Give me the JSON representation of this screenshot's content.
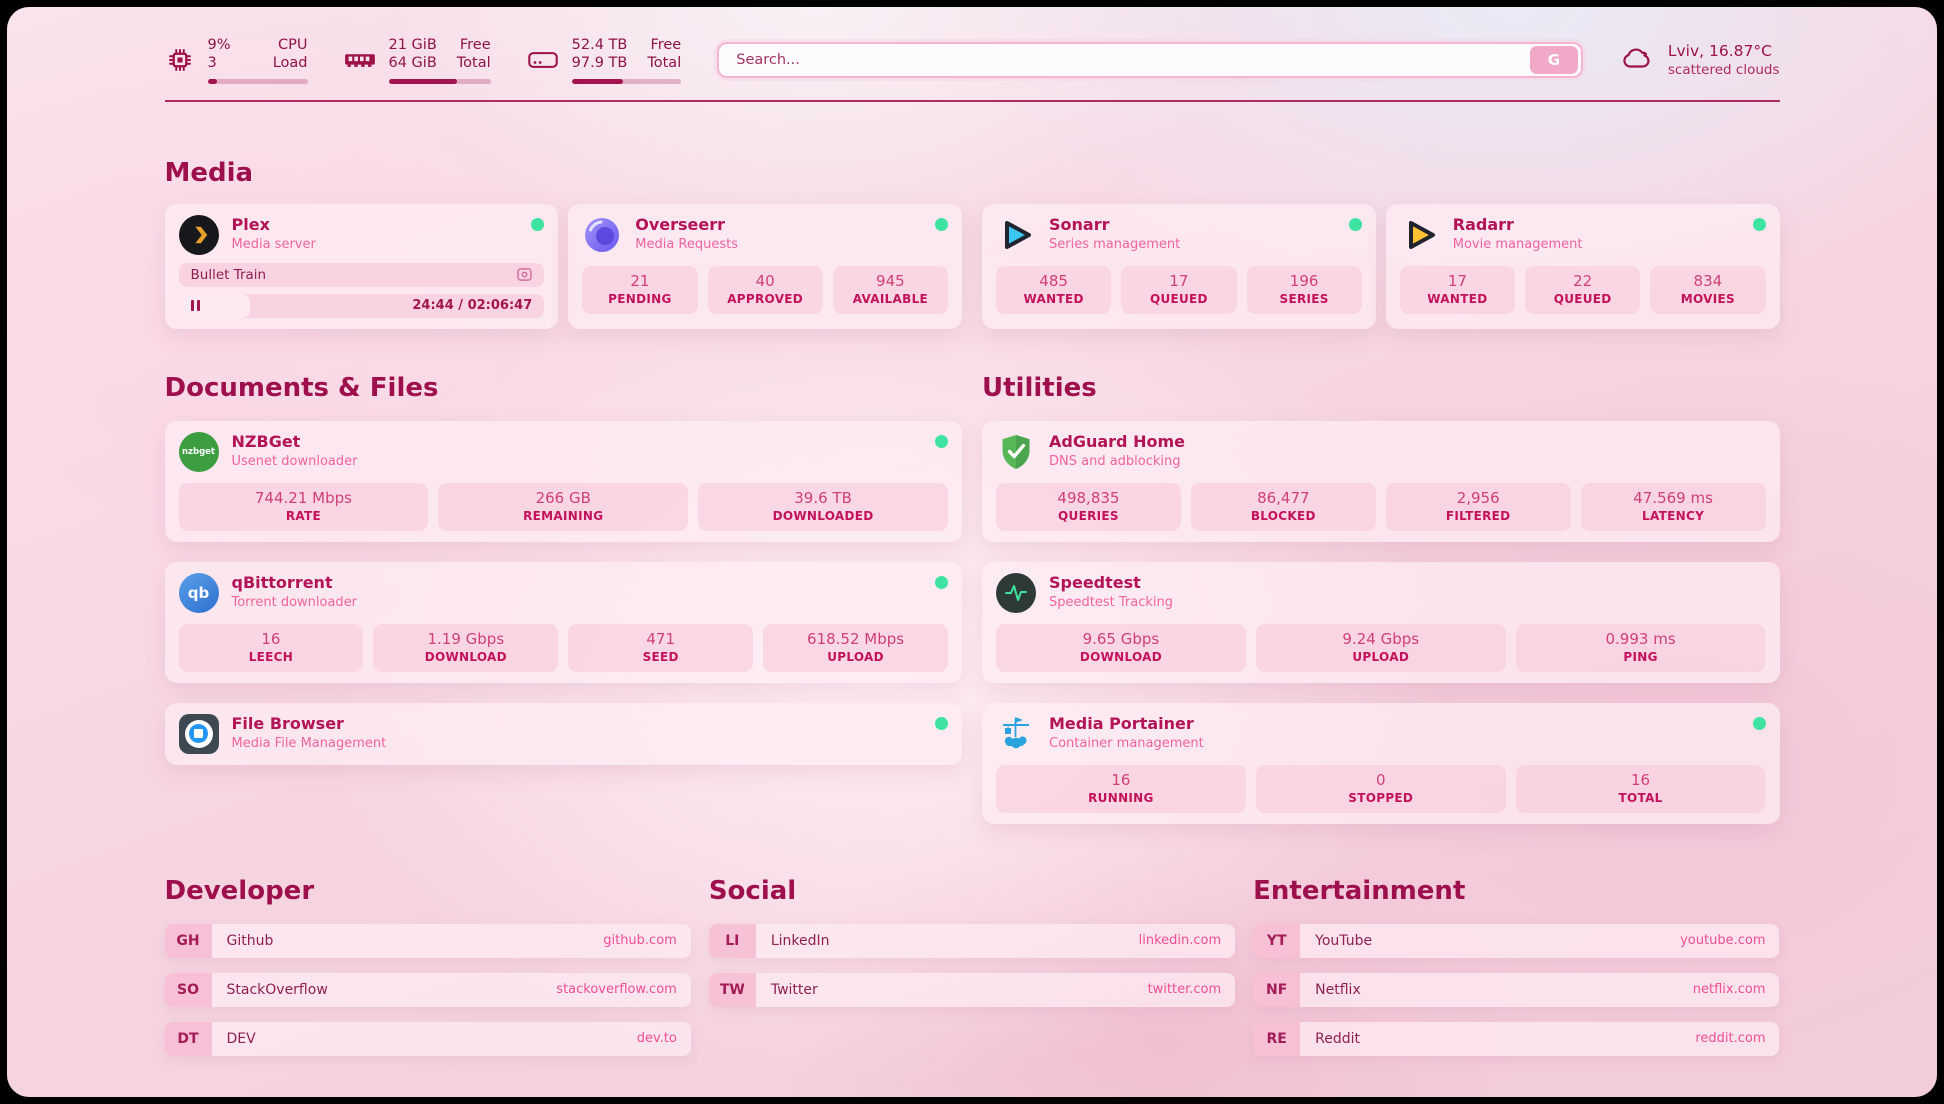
{
  "header": {
    "stats": [
      {
        "name": "cpu",
        "value_top": "9%",
        "value_bottom": "3",
        "label_top": "CPU",
        "label_bottom": "Load",
        "progress_pct": 9
      },
      {
        "name": "memory",
        "value_top": "21 GiB",
        "value_bottom": "64 GiB",
        "label_top": "Free",
        "label_bottom": "Total",
        "progress_pct": 67
      },
      {
        "name": "storage",
        "value_top": "52.4 TB",
        "value_bottom": "97.9 TB",
        "label_top": "Free",
        "label_bottom": "Total",
        "progress_pct": 47
      }
    ],
    "search": {
      "placeholder": "Search...",
      "button_label": "G"
    },
    "weather": {
      "location_temperature": "Lviv, 16.87°C",
      "condition": "scattered clouds"
    }
  },
  "media": {
    "title": "Media",
    "plex": {
      "name": "Plex",
      "description": "Media server",
      "now_playing": "Bullet Train",
      "time_display": "24:44 / 02:06:47",
      "playback_progress_pct": 19.5
    },
    "overseerr": {
      "name": "Overseerr",
      "description": "Media Requests",
      "stats": [
        {
          "value": "21",
          "label": "PENDING"
        },
        {
          "value": "40",
          "label": "APPROVED"
        },
        {
          "value": "945",
          "label": "AVAILABLE"
        }
      ]
    },
    "sonarr": {
      "name": "Sonarr",
      "description": "Series management",
      "stats": [
        {
          "value": "485",
          "label": "WANTED"
        },
        {
          "value": "17",
          "label": "QUEUED"
        },
        {
          "value": "196",
          "label": "SERIES"
        }
      ]
    },
    "radarr": {
      "name": "Radarr",
      "description": "Movie management",
      "stats": [
        {
          "value": "17",
          "label": "WANTED"
        },
        {
          "value": "22",
          "label": "QUEUED"
        },
        {
          "value": "834",
          "label": "MOVIES"
        }
      ]
    }
  },
  "documents": {
    "title": "Documents & Files",
    "nzbget": {
      "name": "NZBGet",
      "description": "Usenet downloader",
      "icon_text": "nzbget",
      "stats": [
        {
          "value": "744.21 Mbps",
          "label": "RATE"
        },
        {
          "value": "266 GB",
          "label": "REMAINING"
        },
        {
          "value": "39.6 TB",
          "label": "DOWNLOADED"
        }
      ]
    },
    "qbittorrent": {
      "name": "qBittorrent",
      "description": "Torrent downloader",
      "icon_text": "qb",
      "stats": [
        {
          "value": "16",
          "label": "LEECH"
        },
        {
          "value": "1.19 Gbps",
          "label": "DOWNLOAD"
        },
        {
          "value": "471",
          "label": "SEED"
        },
        {
          "value": "618.52 Mbps",
          "label": "UPLOAD"
        }
      ]
    },
    "filebrowser": {
      "name": "File Browser",
      "description": "Media File Management"
    }
  },
  "utilities": {
    "title": "Utilities",
    "adguard": {
      "name": "AdGuard Home",
      "description": "DNS and adblocking",
      "stats": [
        {
          "value": "498,835",
          "label": "QUERIES"
        },
        {
          "value": "86,477",
          "label": "BLOCKED"
        },
        {
          "value": "2,956",
          "label": "FILTERED"
        },
        {
          "value": "47.569 ms",
          "label": "LATENCY"
        }
      ]
    },
    "speedtest": {
      "name": "Speedtest",
      "description": "Speedtest Tracking",
      "stats": [
        {
          "value": "9.65 Gbps",
          "label": "DOWNLOAD"
        },
        {
          "value": "9.24 Gbps",
          "label": "UPLOAD"
        },
        {
          "value": "0.993 ms",
          "label": "PING"
        }
      ]
    },
    "portainer": {
      "name": "Media Portainer",
      "description": "Container management",
      "stats": [
        {
          "value": "16",
          "label": "RUNNING"
        },
        {
          "value": "0",
          "label": "STOPPED"
        },
        {
          "value": "16",
          "label": "TOTAL"
        }
      ]
    }
  },
  "bookmarks": {
    "developer": {
      "title": "Developer",
      "links": [
        {
          "abbr": "GH",
          "name": "Github",
          "url": "github.com"
        },
        {
          "abbr": "SO",
          "name": "StackOverflow",
          "url": "stackoverflow.com"
        },
        {
          "abbr": "DT",
          "name": "DEV",
          "url": "dev.to"
        }
      ]
    },
    "social": {
      "title": "Social",
      "links": [
        {
          "abbr": "LI",
          "name": "LinkedIn",
          "url": "linkedin.com"
        },
        {
          "abbr": "TW",
          "name": "Twitter",
          "url": "twitter.com"
        }
      ]
    },
    "entertainment": {
      "title": "Entertainment",
      "links": [
        {
          "abbr": "YT",
          "name": "YouTube",
          "url": "youtube.com"
        },
        {
          "abbr": "NF",
          "name": "Netflix",
          "url": "netflix.com"
        },
        {
          "abbr": "RE",
          "name": "Reddit",
          "url": "reddit.com"
        }
      ]
    }
  },
  "colors": {
    "accent": "#a2134f",
    "pink": "#f0639f",
    "online_green": "#3fe3a1"
  }
}
